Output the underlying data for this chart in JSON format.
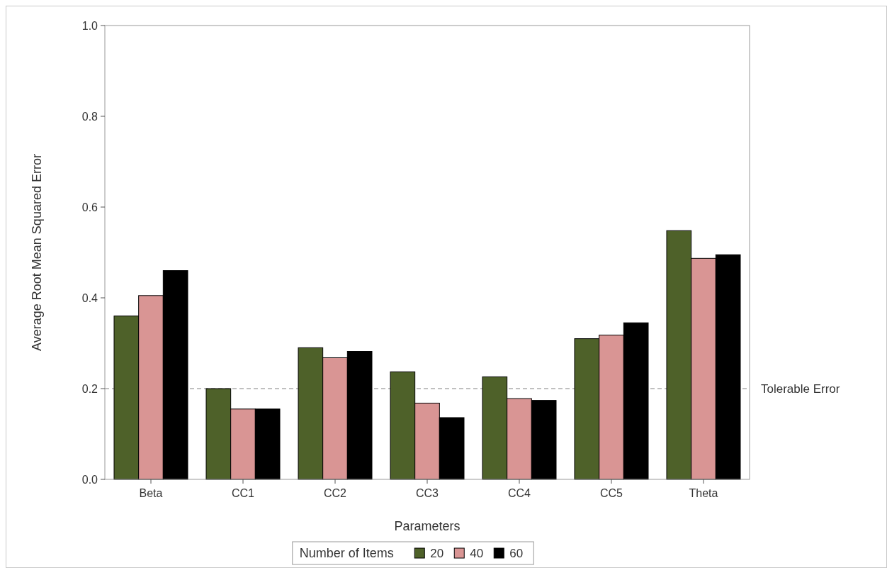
{
  "chart_data": {
    "type": "bar",
    "xlabel": "Parameters",
    "ylabel": "Average Root Mean Squared Error",
    "legend_title": "Number of Items",
    "categories": [
      "Beta",
      "CC1",
      "CC2",
      "CC3",
      "CC4",
      "CC5",
      "Theta"
    ],
    "series": [
      {
        "name": "20",
        "color": "#4e6129",
        "values": [
          0.36,
          0.2,
          0.29,
          0.237,
          0.226,
          0.31,
          0.548
        ]
      },
      {
        "name": "40",
        "color": "#d99594",
        "values": [
          0.405,
          0.155,
          0.268,
          0.168,
          0.178,
          0.318,
          0.487
        ]
      },
      {
        "name": "60",
        "color": "#000000",
        "values": [
          0.46,
          0.155,
          0.282,
          0.136,
          0.174,
          0.345,
          0.495
        ]
      }
    ],
    "ylim": [
      0,
      1
    ],
    "yticks": [
      {
        "value": 0,
        "label": "0.0"
      },
      {
        "value": 0.2,
        "label": "0.2"
      },
      {
        "value": 0.4,
        "label": "0.4"
      },
      {
        "value": 0.6,
        "label": "0.6"
      },
      {
        "value": 0.8,
        "label": "0.8"
      },
      {
        "value": 1,
        "label": "1.0"
      }
    ],
    "ref_lines": [
      {
        "axis": "y",
        "value": 0.2,
        "label": "Tolerable Error",
        "color": "#808080",
        "line_style": "dashed"
      }
    ],
    "legend": "bottom"
  }
}
